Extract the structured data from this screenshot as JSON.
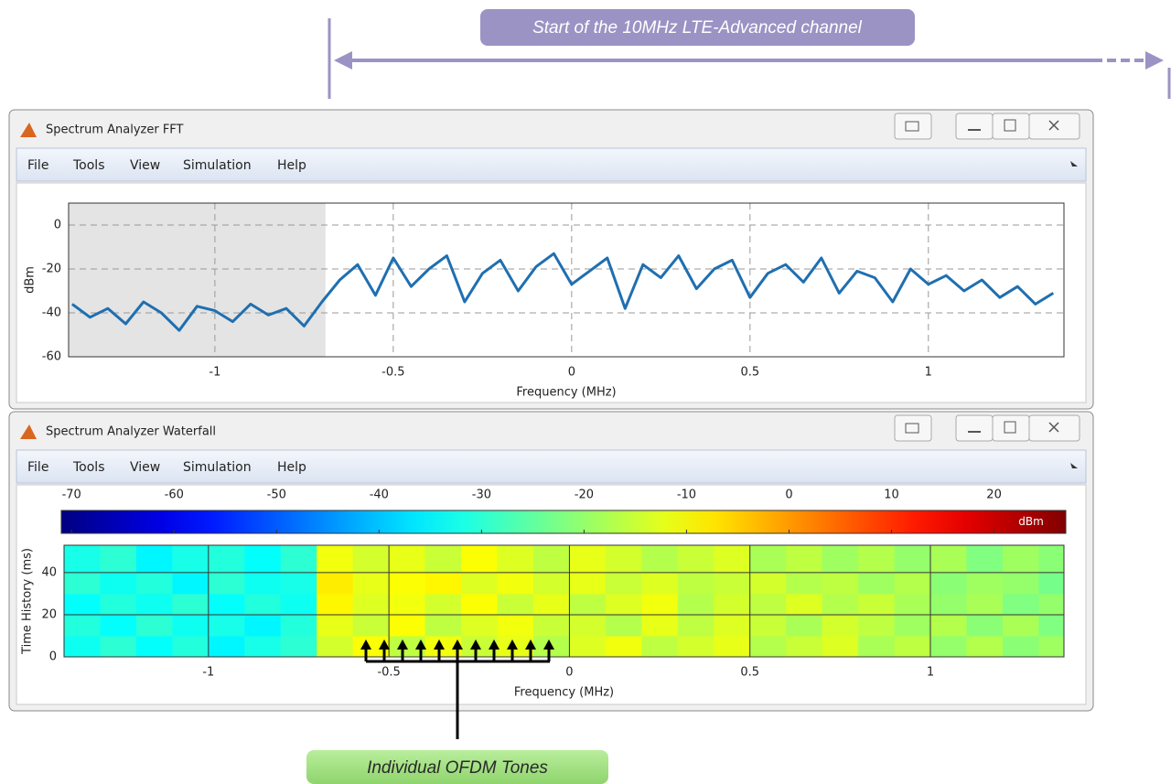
{
  "annotations": {
    "top": "Start of the 10MHz LTE-Advanced channel",
    "bottom": "Individual OFDM Tones"
  },
  "windows": [
    {
      "title": "Spectrum Analyzer FFT",
      "menu": [
        "File",
        "Tools",
        "View",
        "Simulation",
        "Help"
      ],
      "chart": {
        "type": "line",
        "x_label": "Frequency (MHz)",
        "y_label": "dBm",
        "xlim": [
          -1.41,
          1.38
        ],
        "ylim": [
          -60,
          10
        ],
        "xticks": [
          -1,
          -0.5,
          0,
          0.5,
          1
        ],
        "yticks": [
          -60,
          -40,
          -20,
          0
        ],
        "grid": true,
        "color": "#1f6fb0",
        "highlight_xlim": [
          -1.41,
          -0.69
        ],
        "x": [
          -1.4,
          -1.35,
          -1.3,
          -1.25,
          -1.2,
          -1.15,
          -1.1,
          -1.05,
          -1,
          -0.95,
          -0.9,
          -0.85,
          -0.8,
          -0.75,
          -0.7,
          -0.65,
          -0.6,
          -0.55,
          -0.5,
          -0.45,
          -0.4,
          -0.35,
          -0.3,
          -0.25,
          -0.2,
          -0.15,
          -0.1,
          -0.05,
          0,
          0.05,
          0.1,
          0.15,
          0.2,
          0.25,
          0.3,
          0.35,
          0.4,
          0.45,
          0.5,
          0.55,
          0.6,
          0.65,
          0.7,
          0.75,
          0.8,
          0.85,
          0.9,
          0.95,
          1,
          1.05,
          1.1,
          1.15,
          1.2,
          1.25,
          1.3,
          1.35
        ],
        "values": [
          -36,
          -42,
          -38,
          -45,
          -35,
          -40,
          -48,
          -37,
          -39,
          -44,
          -36,
          -41,
          -38,
          -46,
          -35,
          -25,
          -18,
          -32,
          -15,
          -28,
          -20,
          -14,
          -35,
          -22,
          -16,
          -30,
          -19,
          -13,
          -27,
          -21,
          -15,
          -38,
          -18,
          -24,
          -14,
          -29,
          -20,
          -16,
          -33,
          -22,
          -18,
          -26,
          -15,
          -31,
          -21,
          -24,
          -35,
          -20,
          -27,
          -23,
          -30,
          -25,
          -33,
          -28,
          -36,
          -31
        ]
      }
    },
    {
      "title": "Spectrum Analyzer Waterfall",
      "menu": [
        "File",
        "Tools",
        "View",
        "Simulation",
        "Help"
      ],
      "chart": {
        "type": "heatmap",
        "x_label": "Frequency (MHz)",
        "y_label": "Time History (ms)",
        "xlim": [
          -1.4,
          1.37
        ],
        "ylim": [
          0,
          53
        ],
        "xticks": [
          -1,
          -0.5,
          0,
          0.5,
          1
        ],
        "yticks": [
          0,
          20,
          40
        ],
        "grid": true,
        "colorbar": {
          "label": "dBm",
          "lim": [
            -71,
            27
          ],
          "ticks": [
            -70,
            -60,
            -50,
            -40,
            -30,
            -20,
            -10,
            0,
            10,
            20
          ]
        },
        "x": [
          -1.35,
          -1.25,
          -1.15,
          -1.05,
          -0.95,
          -0.85,
          -0.75,
          -0.65,
          -0.55,
          -0.45,
          -0.35,
          -0.25,
          -0.15,
          -0.05,
          0.05,
          0.15,
          0.25,
          0.35,
          0.45,
          0.55,
          0.65,
          0.75,
          0.85,
          0.95,
          1.05,
          1.15,
          1.25,
          1.35
        ],
        "y": [
          5,
          15,
          25,
          35,
          45
        ],
        "values": [
          [
            -33,
            -30,
            -34,
            -31,
            -35,
            -32,
            -30,
            -14,
            -10,
            -16,
            -11,
            -15,
            -12,
            -17,
            -13,
            -11,
            -16,
            -14,
            -12,
            -17,
            -15,
            -13,
            -18,
            -16,
            -20,
            -17,
            -21,
            -19
          ],
          [
            -31,
            -34,
            -30,
            -33,
            -32,
            -35,
            -31,
            -12,
            -15,
            -10,
            -16,
            -13,
            -11,
            -15,
            -14,
            -17,
            -12,
            -16,
            -13,
            -15,
            -18,
            -14,
            -16,
            -19,
            -17,
            -21,
            -18,
            -22
          ],
          [
            -34,
            -31,
            -33,
            -30,
            -34,
            -31,
            -33,
            -9,
            -13,
            -11,
            -14,
            -10,
            -15,
            -12,
            -16,
            -13,
            -11,
            -17,
            -14,
            -16,
            -13,
            -17,
            -15,
            -18,
            -20,
            -18,
            -22,
            -20
          ],
          [
            -30,
            -33,
            -31,
            -35,
            -30,
            -33,
            -32,
            -8,
            -12,
            -10,
            -9,
            -13,
            -11,
            -14,
            -12,
            -15,
            -13,
            -16,
            -15,
            -14,
            -17,
            -16,
            -19,
            -17,
            -21,
            -19,
            -20,
            -23
          ],
          [
            -32,
            -30,
            -35,
            -32,
            -31,
            -34,
            -30,
            -11,
            -14,
            -12,
            -15,
            -10,
            -13,
            -16,
            -12,
            -14,
            -17,
            -15,
            -13,
            -18,
            -16,
            -19,
            -17,
            -20,
            -18,
            -22,
            -19,
            -21
          ]
        ]
      }
    }
  ]
}
